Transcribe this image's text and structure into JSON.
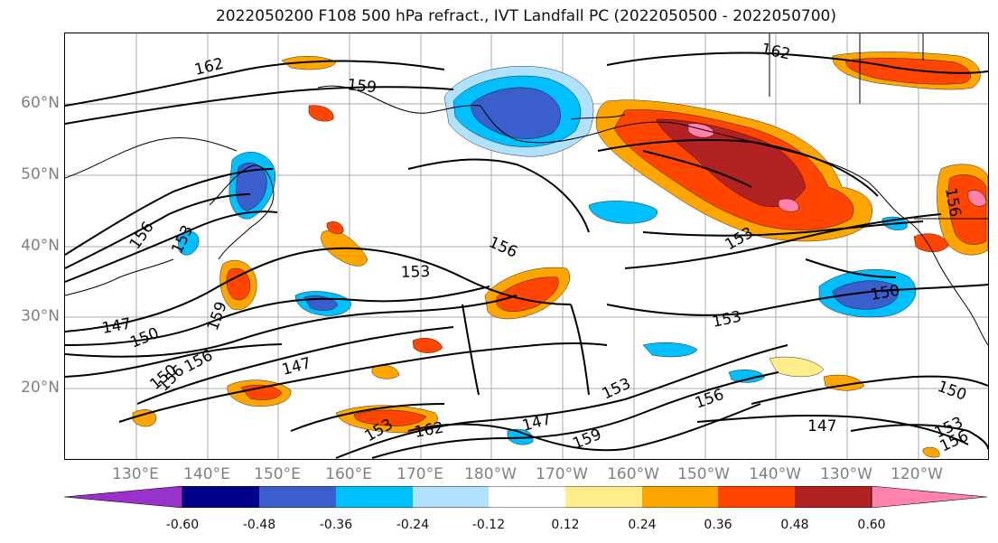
{
  "title": "2022050200 F108 500 hPa refract., IVT Landfall PC (2022050500 - 2022050700)",
  "lat_labels": [
    "60°N",
    "50°N",
    "40°N",
    "30°N",
    "20°N"
  ],
  "lon_labels": [
    "130°E",
    "140°E",
    "150°E",
    "160°E",
    "170°E",
    "180°W",
    "170°W",
    "160°W",
    "150°W",
    "140°W",
    "130°W",
    "120°W"
  ],
  "contour_labels": [
    "162",
    "159",
    "162",
    "156",
    "153",
    "156",
    "153",
    "153",
    "150",
    "153",
    "147",
    "150",
    "156",
    "159",
    "150",
    "147",
    "156",
    "153",
    "162",
    "147",
    "159",
    "153",
    "156",
    "150",
    "147",
    "153",
    "156",
    "156"
  ],
  "colorbar": {
    "colors": [
      "#9932cc",
      "#00008b",
      "#3a5fcd",
      "#00bfff",
      "#b0e2ff",
      "#ffffff",
      "#ffec8b",
      "#ffa500",
      "#ff4500",
      "#b22222",
      "#ff82ab"
    ],
    "tick_labels": [
      "-0.60",
      "-0.48",
      "-0.36",
      "-0.24",
      "-0.12",
      "0.12",
      "0.24",
      "0.36",
      "0.48",
      "0.60"
    ]
  },
  "colors": {
    "contour": "#000000",
    "grid": "#a9a9a9",
    "axis_text": "#808080"
  }
}
